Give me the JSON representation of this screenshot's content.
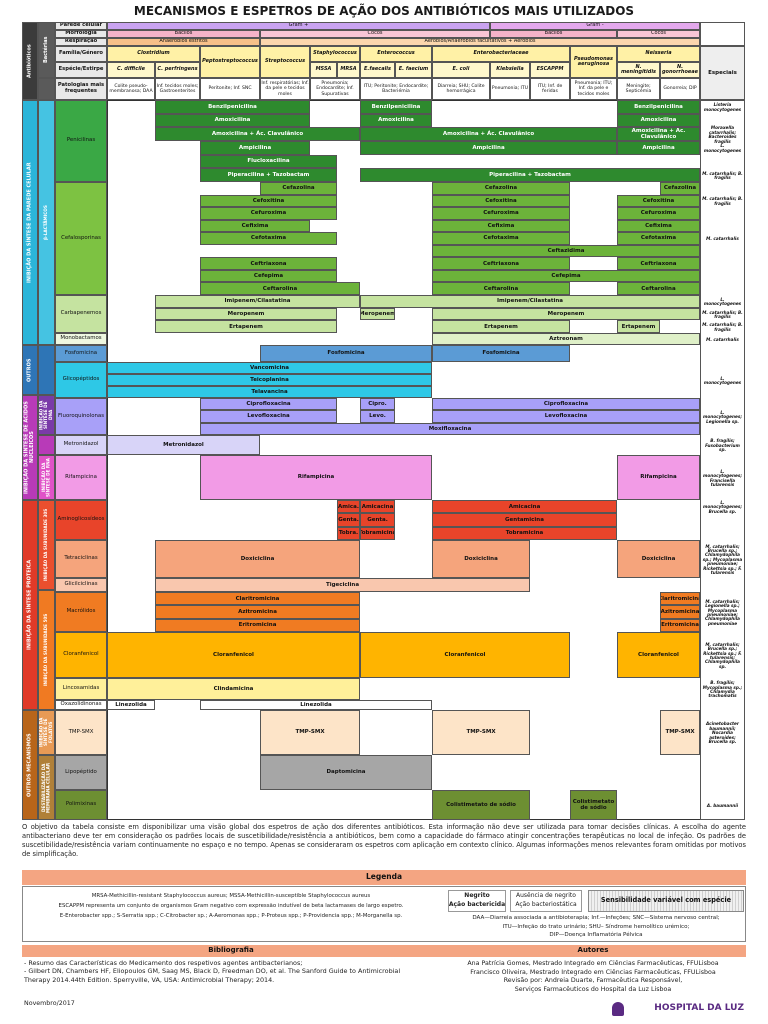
{
  "title": "MECANISMOS E ESPETROS DE AÇÃO DOS ANTIBIÓTICOS MAIS UTILIZADOS",
  "header": {
    "antibioticos": "Antibióticos",
    "bacterias": "Bactérias",
    "especiais": "Especiais",
    "rows": [
      {
        "label": "Parede celular",
        "cells": [
          "Gram +",
          "Gram -"
        ]
      },
      {
        "label": "Morfologia",
        "cells": [
          "Bacilos",
          "Cocos",
          "Bacilos",
          "Cocos"
        ]
      },
      {
        "label": "Respiração",
        "cells": [
          "Anaeróbios estritos",
          "Aeróbios/Anaeróbios facultativos + Aeróbios"
        ]
      },
      {
        "label": "Família/Género",
        "cells": [
          "Clostridium",
          "Peptostreptococcus",
          "Streptococcus",
          "Staphylococcus",
          "Enterococcus",
          "Enterobacteriaceae",
          "Pseudomonas aeruginosa",
          "Neisseria"
        ]
      },
      {
        "label": "Espécie/Estirpe",
        "cells": [
          "C. difficile",
          "C. perfringens",
          "MSSA",
          "MRSA",
          "E.faecalis",
          "E. faecium",
          "E. coli",
          "Klebsiella",
          "ESCAPPM",
          "N. meningitidis",
          "N. gonorrhoeae"
        ]
      },
      {
        "label": "Patologias mais frequentes",
        "cells": [
          "Colite pseudo-membranosa; DAA",
          "Inf. tecidos moles; Gastroenterites",
          "Peritonite; Inf. SNC",
          "Inf. respiratórias; Inf. da pele e tecidos moles",
          "Pneumonia; Endocardite; Inf. Supurativas",
          "ITU; Peritonite; Endocardite; Bacteriémia",
          "Diarreia; SHU; Colite hemorrágica",
          "Pneumonia; ITU",
          "ITU; Inf. de feridas",
          "Pneumonia; ITU; Inf. da pele e tecidos moles",
          "Meningite; Septicémia",
          "Gonorreia; DIP"
        ]
      }
    ]
  },
  "sections": [
    "INIBIÇÃO DA SÍNTESE DA PAREDE CELULAR",
    "OUTROS",
    "INIBIÇÃO DA SÍNTESE DE ÁCIDOS NUCLEICOS",
    "INIBIÇÃO DA SÍNTESE PROTEICA",
    "OUTROS MECANISMOS"
  ],
  "subsections": [
    "β-LACTÂMICOS",
    "INIBIÇÃO DA SÍNTESE DE DNA",
    "INIBIÇÃO DA SÍNTESE DE RNA",
    "INIBIÇÃO DA SUBUNIDADE 30S",
    "INIBIÇÃO DA SUBUNIDADE 50S",
    "INIBIÇÃO DA SÍNTESE DE FOLATOS",
    "DESTABILIZAÇÃO DA MEMBRANA CELULAR"
  ],
  "classes": [
    {
      "name": "Penicilinas",
      "lines": [
        [
          "Benzilpenicilina",
          "Benzilpenicilina",
          "Benzilpenicilina"
        ],
        [
          "Amoxicilina",
          "Amoxicilina",
          "Amoxicilina"
        ],
        [
          "Amoxicilina + Ác. Clavulânico",
          "Amoxicilina + Ác. Clavulânico",
          "Amoxicilina + Ác. Clavulânico"
        ],
        [
          "Ampicilina",
          "Ampicilina",
          "Ampicilina"
        ],
        [
          "Flucloxacilina"
        ],
        [
          "Piperacilina + Tazobactam",
          "Piperacilina + Tazobactam"
        ]
      ],
      "especiais": [
        "Listeria monocytogenes",
        "Moraxella catarrhalis; Bacteroides fragilis",
        "L. monocytogenes",
        "M. catarrhalis; B. fragilis"
      ]
    },
    {
      "name": "Cefalosporinas",
      "lines": [
        [
          "Cefazolina",
          "Cefazolina",
          "Cefazolina"
        ],
        [
          "Cefoxitina",
          "Cefoxitina",
          "Cefoxitina"
        ],
        [
          "Cefuroxima",
          "Cefuroxima",
          "Cefuroxima"
        ],
        [
          "Cefixima",
          "Cefixima",
          "Cefixima"
        ],
        [
          "Cefotaxima",
          "Cefotaxima",
          "Cefotaxima"
        ],
        [
          "Ceftazidima"
        ],
        [
          "Ceftriaxona",
          "Ceftriaxona",
          "Ceftriaxona"
        ],
        [
          "Cefepima",
          "Cefepima"
        ],
        [
          "Ceftarolina",
          "Ceftarolina",
          "Ceftarolina"
        ]
      ],
      "especiais": [
        "M. catarrhalis; B. fragilis",
        "M. catarrhalis"
      ]
    },
    {
      "name": "Carbapenemos",
      "lines": [
        [
          "Imipenem/Cilastatina",
          "Imipenem/Cilastatina"
        ],
        [
          "Meropenem",
          "Meropenem",
          "Meropenem"
        ],
        [
          "Ertapenem",
          "Ertapenem",
          "Ertapenem"
        ]
      ],
      "especiais": [
        "L. monocytogenes",
        "M. catarrhalis; B. fragilis",
        "M. catarrhalis; B. fragilis"
      ]
    },
    {
      "name": "Monobactamos",
      "lines": [
        [
          "Aztreonam"
        ]
      ],
      "especiais": [
        "M. catarrhalis"
      ]
    },
    {
      "name": "Fosfomicina",
      "lines": [
        [
          "Fosfomicina",
          "Fosfomicina"
        ]
      ],
      "especiais": []
    },
    {
      "name": "Glicopéptidos",
      "lines": [
        [
          "Vancomicina"
        ],
        [
          "Teicoplanina"
        ],
        [
          "Telavancina"
        ]
      ],
      "especiais": [
        "L. monocytogenes"
      ]
    },
    {
      "name": "Fluoroquinolonas",
      "lines": [
        [
          "Ciprofloxacina",
          "Cipro.",
          "Ciprofloxacina"
        ],
        [
          "Levofloxacina",
          "Levo.",
          "Levofloxacina"
        ],
        [
          "Moxifloxacina"
        ]
      ],
      "especiais": [
        "L. monocytogenes; Legionella sp."
      ]
    },
    {
      "name": "Metronidazol",
      "lines": [
        [
          "Metronidazol"
        ]
      ],
      "especiais": [
        "B. fragilis; Fusobacterium sp."
      ]
    },
    {
      "name": "Rifampicina",
      "lines": [
        [
          "Rifampicina",
          "Rifampicina"
        ]
      ],
      "especiais": [
        "L. monocytogenes; Francisella tularensis"
      ]
    },
    {
      "name": "Aminoglicosídeos",
      "lines": [
        [
          "Amica.",
          "Amicacina",
          "Amicacina"
        ],
        [
          "Genta.",
          "Genta.",
          "Gentamicina"
        ],
        [
          "Tobra.",
          "Tobramicina",
          "Tobramicina"
        ]
      ],
      "especiais": [
        "L. monocytogenes; Brucella sp."
      ]
    },
    {
      "name": "Tetraciclinas",
      "lines": [
        [
          "Doxiciclina",
          "Doxiciclina",
          "Doxiciclina"
        ]
      ],
      "especiais": [
        "M. catarrhalis; Brucella sp.; Chlamydophila sp.; Mycoplasma pneumoniae; Rickettsia sp.; F. tularensis"
      ]
    },
    {
      "name": "Glicilciclinas",
      "lines": [
        [
          "Tigeciclina"
        ]
      ],
      "especiais": []
    },
    {
      "name": "Macrólidos",
      "lines": [
        [
          "Claritromicina",
          "Claritromicina"
        ],
        [
          "Azitromicina",
          "Azitromicina"
        ],
        [
          "Eritromicina",
          "Eritromicina"
        ]
      ],
      "especiais": [
        "M. catarrhalis; Legionella sp.; Mycoplasma pneumoniae; Chlamydophila pneumoniae"
      ]
    },
    {
      "name": "Cloranfenicol",
      "lines": [
        [
          "Cloranfenicol",
          "Cloranfenicol",
          "Cloranfenicol"
        ]
      ],
      "especiais": [
        "M. catarrhalis; Brucella sp.; Rickettsia sp.; F. tularensis; Chlamydophila sp."
      ]
    },
    {
      "name": "Lincosamidas",
      "lines": [
        [
          "Clindamicina"
        ]
      ],
      "especiais": [
        "B. fragilis; Mycoplasma sp.; Chlamydia trachomatis"
      ]
    },
    {
      "name": "Oxazolidinonas",
      "lines": [
        [
          "Linezolida",
          "Linezolida"
        ]
      ],
      "especiais": []
    },
    {
      "name": "TMP-SMX",
      "lines": [
        [
          "TMP-SMX",
          "TMP-SMX",
          "TMP-SMX"
        ]
      ],
      "especiais": [
        "Acinetobacter baumannii; Nocardia asteroides; Brucella sp."
      ]
    },
    {
      "name": "Lipopéptido",
      "lines": [
        [
          "Daptomicina"
        ]
      ],
      "especiais": []
    },
    {
      "name": "Polimixinas",
      "lines": [
        [
          "Colistimetato de sódio",
          "Colistimetato de sódio"
        ]
      ],
      "especiais": [
        "A. baumannii"
      ]
    }
  ],
  "note": "O objetivo da tabela consiste em disponibilizar uma visão global dos espetros de ação dos diferentes antibióticos. Esta informação não deve ser utilizada para tomar decisões clínicas. A escolha do agente antibacteriano deve ter em consideração os padrões locais de suscetibilidade/resistência a antibióticos, bem como a capacidade do fármaco atingir concentrações terapêuticas no local de infeção. Os padrões de suscetibilidade/resistência variam continuamente no espaço e no tempo. Apenas se consideraram os espetros com aplicação em contexto clínico. Algumas informações menos relevantes foram omitidas por motivos de simplificação.",
  "legend": {
    "title": "Legenda",
    "abbreviations": [
      "MRSA-Methicillin-resistant Staphylococcus aureus; MSSA-Methicillin-susceptible Staphylococcus aureus",
      "ESCAPPM representa um conjunto de organismos Gram negativo com expressão indutível de beta lactamases de largo espetro.",
      "E-Enterobacter spp.; S-Serratia spp.; C-Citrobacter sp.; A-Aeromonas spp.; P-Proteus spp.; P-Providencia spp.; M-Morganella sp."
    ],
    "bold": {
      "term": "Negrito",
      "desc": "Ação bactericida"
    },
    "regular": {
      "term": "Ausência de negrito",
      "desc": "Ação bacteriostática"
    },
    "hatched": "Sensibilidade variável com espécie",
    "acronyms": [
      "DAA—Diarreia associada a antibioterapia; Inf.—Infeções; SNC—Sistema nervoso central;",
      "ITU—Infeção do trato urinário; SHU– Síndrome hemolítico urémico;",
      "DIP—Doença Inflamatória Pélvica"
    ]
  },
  "bibliography": {
    "title": "Bibliografia",
    "items": [
      "- Resumo das Características do Medicamento dos respetivos agentes antibacterianos;",
      "- Gilbert DN, Chambers HF, Eliopoulos GM, Saag MS, Black D, Freedman DO, et al. The Sanford Guide to Antimicrobial Therapy 2014.44th Edition. Sperryville, VA, USA: Antimicrobial Therapy; 2014."
    ]
  },
  "authors": {
    "title": "Autores",
    "items": [
      "Ana Patrícia Gomes, Mestrado Integrado em Ciências Farmacêuticas, FFULisboa",
      "Francisco Oliveira, Mestrado Integrado em Ciências Farmacêuticas, FFULisboa",
      "Revisão por: Andreia Duarte, Farmacêutica Responsável,",
      "Serviços Farmacêuticos do Hospital da Luz Lisboa"
    ]
  },
  "date": "Novembro/2017",
  "logo": "HOSPITAL DA LUZ"
}
